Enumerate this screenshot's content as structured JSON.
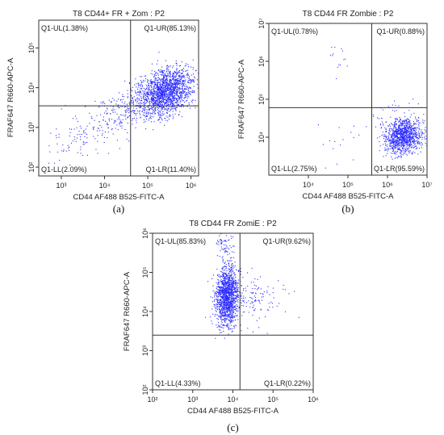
{
  "chart_data": [
    {
      "type": "scatter",
      "panel_letter": "(a)",
      "title": "T8 CD44+ FR + Zom : P2",
      "xlabel": "CD44 AF488 B525-FITC-A",
      "ylabel": "FRAF647 R660-APC-A",
      "x_scale": "log",
      "y_scale": "log",
      "xlim": [
        300,
        1500000
      ],
      "ylim": [
        60,
        500000
      ],
      "x_ticks": [
        {
          "v": 1000,
          "label": "10³"
        },
        {
          "v": 10000,
          "label": "10⁴"
        },
        {
          "v": 100000,
          "label": "10⁵"
        },
        {
          "v": 1000000,
          "label": "10⁶"
        }
      ],
      "y_ticks": [
        {
          "v": 100,
          "label": "10²"
        },
        {
          "v": 1000,
          "label": "10³"
        },
        {
          "v": 10000,
          "label": "10⁴"
        },
        {
          "v": 100000,
          "label": "10⁵"
        }
      ],
      "gate": {
        "x": 40000,
        "y": 3500
      },
      "quadrants": [
        {
          "name": "Q1-UL",
          "label": "Q1-UL(1.38%)",
          "percent": 1.38,
          "pos": "top-left"
        },
        {
          "name": "Q1-UR",
          "label": "Q1-UR(85.13%)",
          "percent": 85.13,
          "pos": "top-right"
        },
        {
          "name": "Q1-LL",
          "label": "Q1-LL(2.09%)",
          "percent": 2.09,
          "pos": "bottom-left"
        },
        {
          "name": "Q1-LR",
          "label": "Q1-LR(11.40%)",
          "percent": 11.4,
          "pos": "bottom-right"
        }
      ],
      "point_color": "#2b2bff",
      "clusters": [
        {
          "cx": 250000,
          "cy": 8000,
          "sx": 0.32,
          "sy": 0.3,
          "n": 1700,
          "rho": 0.35
        },
        {
          "cx": 25000,
          "cy": 2500,
          "sx": 0.5,
          "sy": 0.4,
          "n": 260,
          "rho": 0.6
        },
        {
          "cx": 2000,
          "cy": 500,
          "sx": 0.4,
          "sy": 0.35,
          "n": 70,
          "rho": 0.3
        }
      ]
    },
    {
      "type": "scatter",
      "panel_letter": "(b)",
      "title": "T8 CD44 FR Zombie : P2",
      "xlabel": "CD44 AF488 B525-FITC-A",
      "ylabel": "FRAF647 R660-APC-A",
      "x_scale": "log",
      "y_scale": "log",
      "xlim": [
        1000,
        10000000
      ],
      "ylim": [
        1000,
        10000000
      ],
      "x_ticks": [
        {
          "v": 10000,
          "label": "10⁴"
        },
        {
          "v": 100000,
          "label": "10⁵"
        },
        {
          "v": 1000000,
          "label": "10⁶"
        },
        {
          "v": 10000000,
          "label": "10⁷"
        }
      ],
      "y_ticks": [
        {
          "v": 10000,
          "label": "10⁴"
        },
        {
          "v": 100000,
          "label": "10⁵"
        },
        {
          "v": 1000000,
          "label": "10⁶"
        },
        {
          "v": 10000000,
          "label": "10⁷"
        }
      ],
      "gate": {
        "x": 400000,
        "y": 60000
      },
      "quadrants": [
        {
          "name": "Q1-UL",
          "label": "Q1-UL(0.78%)",
          "percent": 0.78,
          "pos": "top-left"
        },
        {
          "name": "Q1-UR",
          "label": "Q1-UR(0.88%)",
          "percent": 0.88,
          "pos": "top-right"
        },
        {
          "name": "Q1-LL",
          "label": "Q1-LL(2.75%)",
          "percent": 2.75,
          "pos": "bottom-left"
        },
        {
          "name": "Q1-LR",
          "label": "Q1-LR(95.59%)",
          "percent": 95.59,
          "pos": "bottom-right"
        }
      ],
      "point_color": "#2b2bff",
      "clusters": [
        {
          "cx": 2500000,
          "cy": 11000,
          "sx": 0.25,
          "sy": 0.22,
          "n": 1100,
          "rho": 0.1
        },
        {
          "cx": 1500000,
          "cy": 45000,
          "sx": 0.3,
          "sy": 0.2,
          "n": 25,
          "rho": 0
        },
        {
          "cx": 60000,
          "cy": 1100000,
          "sx": 0.2,
          "sy": 0.3,
          "n": 14,
          "rho": 0
        },
        {
          "cx": 80000,
          "cy": 8000,
          "sx": 0.5,
          "sy": 0.3,
          "n": 18,
          "rho": 0
        }
      ]
    },
    {
      "type": "scatter",
      "panel_letter": "(c)",
      "title": "T8 CD44 FR ZomiE : P2",
      "xlabel": "CD44 AF488 B525-FITC-A",
      "ylabel": "FRAF647 R660-APC-A",
      "x_scale": "log",
      "y_scale": "log",
      "xlim": [
        100,
        1000000
      ],
      "ylim": [
        100,
        1000000
      ],
      "x_ticks": [
        {
          "v": 100,
          "label": "10²"
        },
        {
          "v": 1000,
          "label": "10³"
        },
        {
          "v": 10000,
          "label": "10⁴"
        },
        {
          "v": 100000,
          "label": "10⁵"
        },
        {
          "v": 1000000,
          "label": "10⁶"
        }
      ],
      "y_ticks": [
        {
          "v": 100,
          "label": "10²"
        },
        {
          "v": 1000,
          "label": "10³"
        },
        {
          "v": 10000,
          "label": "10⁴"
        },
        {
          "v": 100000,
          "label": "10⁵"
        },
        {
          "v": 1000000,
          "label": "10⁶"
        }
      ],
      "gate": {
        "x": 15000,
        "y": 2500
      },
      "quadrants": [
        {
          "name": "Q1-UL",
          "label": "Q1-UL(85.83%)",
          "percent": 85.83,
          "pos": "top-left"
        },
        {
          "name": "Q1-UR",
          "label": "Q1-UR(9.62%)",
          "percent": 9.62,
          "pos": "top-right"
        },
        {
          "name": "Q1-LL",
          "label": "Q1-LL(4.33%)",
          "percent": 4.33,
          "pos": "bottom-left"
        },
        {
          "name": "Q1-LR",
          "label": "Q1-LR(0.22%)",
          "percent": 0.22,
          "pos": "bottom-right"
        }
      ],
      "point_color": "#2b2bff",
      "clusters": [
        {
          "cx": 7000,
          "cy": 25000,
          "sx": 0.14,
          "sy": 0.38,
          "n": 1400,
          "rho": 0.1
        },
        {
          "cx": 30000,
          "cy": 20000,
          "sx": 0.35,
          "sy": 0.3,
          "n": 130,
          "rho": 0
        },
        {
          "cx": 6000,
          "cy": 500000,
          "sx": 0.12,
          "sy": 0.15,
          "n": 60,
          "rho": 0
        }
      ]
    }
  ]
}
